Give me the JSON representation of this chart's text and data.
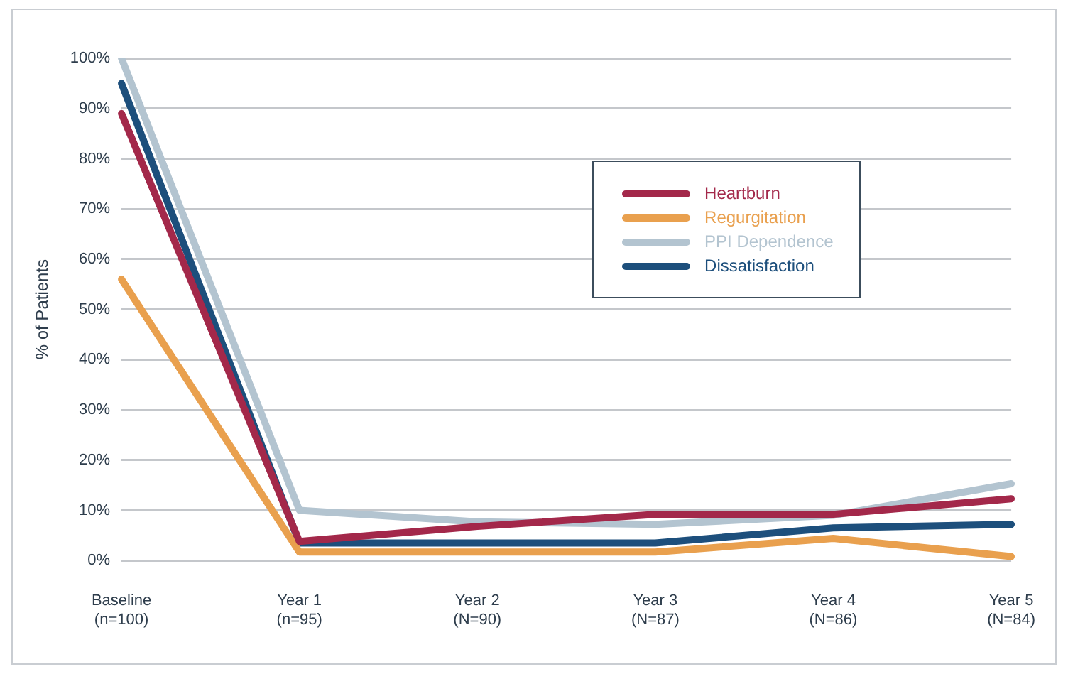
{
  "chart_data": {
    "type": "line",
    "ylabel": "% of Patients",
    "categories": [
      "Baseline\n(n=100)",
      "Year 1\n(n=95)",
      "Year 2\n(N=90)",
      "Year 3\n(N=87)",
      "Year 4\n(N=86)",
      "Year 5\n(N=84)"
    ],
    "series": [
      {
        "name": "Heartburn",
        "color": "#a3284a",
        "values": [
          89,
          3.8,
          6.8,
          9.2,
          9.2,
          12.3
        ]
      },
      {
        "name": "Regurgitation",
        "color": "#e9a04e",
        "values": [
          56,
          1.7,
          1.7,
          1.7,
          4.4,
          0.8
        ]
      },
      {
        "name": "PPI Dependence",
        "color": "#b3c4d0",
        "values": [
          100,
          10,
          7.7,
          7.2,
          9,
          15.3
        ]
      },
      {
        "name": "Dissatisfaction",
        "color": "#1d4f7c",
        "values": [
          95,
          3.5,
          3.5,
          3.5,
          6.5,
          7.2
        ]
      }
    ],
    "ylim": [
      0,
      100
    ],
    "yticks": [
      {
        "value": 0,
        "label": "0%"
      },
      {
        "value": 10,
        "label": "10%"
      },
      {
        "value": 20,
        "label": "20%"
      },
      {
        "value": 30,
        "label": "30%"
      },
      {
        "value": 40,
        "label": "40%"
      },
      {
        "value": 50,
        "label": "50%"
      },
      {
        "value": 60,
        "label": "60%"
      },
      {
        "value": 70,
        "label": "70%"
      },
      {
        "value": 80,
        "label": "80%"
      },
      {
        "value": 90,
        "label": "90%"
      },
      {
        "value": 100,
        "label": "100%"
      }
    ],
    "grid": "y",
    "legend": "top right",
    "marker": "none",
    "line_style": "solid"
  }
}
